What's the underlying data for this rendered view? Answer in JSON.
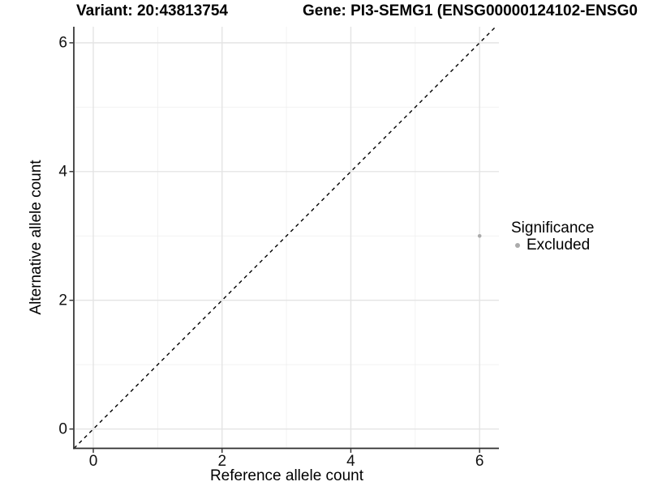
{
  "titles": {
    "variant": "Variant: 20:43813754",
    "gene": "Gene: PI3-SEMG1 (ENSG00000124102-ENSG0"
  },
  "chart_data": {
    "type": "scatter",
    "xlabel": "Reference allele count",
    "ylabel": "Alternative allele count",
    "xlim": [
      -0.29,
      6.3
    ],
    "ylim": [
      -0.3,
      6.25
    ],
    "x_breaks": [
      0,
      2,
      4,
      6
    ],
    "y_breaks": [
      0,
      2,
      4,
      6
    ],
    "x_minor_breaks": [
      1,
      3,
      5
    ],
    "y_minor_breaks": [
      1,
      3,
      5
    ],
    "grid": true,
    "points": [
      {
        "x": 6,
        "y": 3,
        "significance": "Excluded",
        "color": "#ABABAB"
      }
    ],
    "diagonal": {
      "from": [
        -0.3,
        -0.3
      ],
      "to": [
        6.3,
        6.3
      ],
      "style": "dashed",
      "color": "#000000"
    },
    "legend": {
      "title": "Significance",
      "position": "right",
      "items": [
        {
          "label": "Excluded",
          "color": "#ABABAB"
        }
      ]
    }
  },
  "colors": {
    "background": "#FFFFFF",
    "axis_line": "#2E2E2E",
    "grid_major": "#E4E4E4",
    "grid_minor": "#F0F0F0",
    "text": "#000000"
  }
}
